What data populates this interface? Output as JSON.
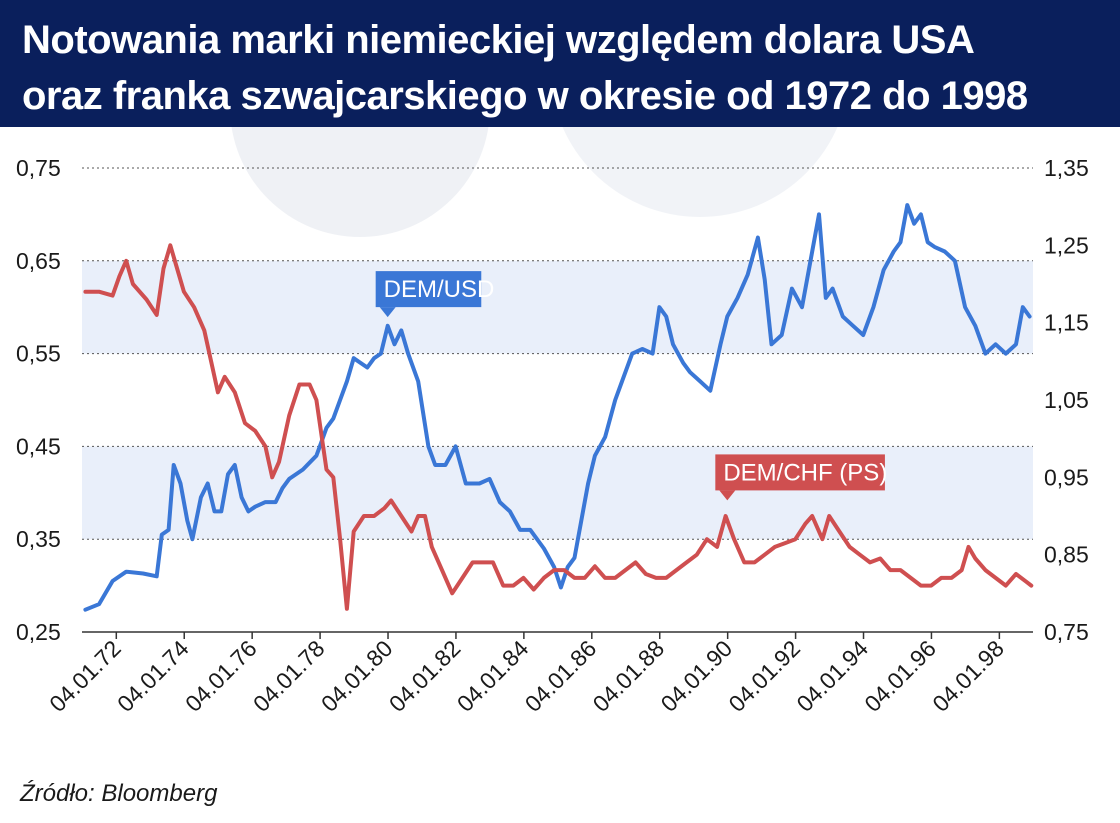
{
  "header": {
    "title_line1": "Notowania marki niemieckiej względem dolara USA",
    "title_line2": "oraz franka szwajcarskiego w okresie od 1972 do 1998"
  },
  "source": "Źródło: Bloomberg",
  "chart_data": {
    "type": "line",
    "title": "Notowania marki niemieckiej względem dolara USA oraz franka szwajcarskiego w okresie od 1972 do 1998",
    "x_ticks": [
      "04.01.72",
      "04.01.74",
      "04.01.76",
      "04.01.78",
      "04.01.80",
      "04.01.82",
      "04.01.84",
      "04.01.86",
      "04.01.88",
      "04.01.90",
      "04.01.92",
      "04.01.94",
      "04.01.96",
      "04.01.98"
    ],
    "x_range": [
      1971.0,
      1999.0
    ],
    "y_left": {
      "range": [
        0.25,
        0.75
      ],
      "ticks": [
        "0,25",
        "0,35",
        "0,45",
        "0,55",
        "0,65",
        "0,75"
      ]
    },
    "y_right": {
      "range": [
        0.75,
        1.35
      ],
      "ticks": [
        "0,75",
        "0,85",
        "0,95",
        "1,05",
        "1,15",
        "1,25",
        "1,35"
      ]
    },
    "grid": true,
    "bands_left": [
      [
        0.35,
        0.45
      ],
      [
        0.55,
        0.65
      ]
    ],
    "colors": {
      "DEM/USD": "#3a77d6",
      "DEM/CHF": "#cf4f50",
      "band": "#e9effa",
      "header": "#0a1f5c"
    },
    "series": [
      {
        "name": "DEM/USD",
        "axis": "left",
        "label": "DEM/USD",
        "label_at": [
          1980.0,
          0.585
        ],
        "points": [
          [
            1971.1,
            0.274
          ],
          [
            1971.5,
            0.28
          ],
          [
            1971.9,
            0.305
          ],
          [
            1972.3,
            0.315
          ],
          [
            1972.8,
            0.313
          ],
          [
            1973.2,
            0.31
          ],
          [
            1973.35,
            0.355
          ],
          [
            1973.55,
            0.36
          ],
          [
            1973.7,
            0.43
          ],
          [
            1973.9,
            0.41
          ],
          [
            1974.1,
            0.37
          ],
          [
            1974.25,
            0.35
          ],
          [
            1974.5,
            0.395
          ],
          [
            1974.7,
            0.41
          ],
          [
            1974.9,
            0.38
          ],
          [
            1975.1,
            0.38
          ],
          [
            1975.3,
            0.42
          ],
          [
            1975.5,
            0.43
          ],
          [
            1975.7,
            0.395
          ],
          [
            1975.9,
            0.38
          ],
          [
            1976.1,
            0.385
          ],
          [
            1976.4,
            0.39
          ],
          [
            1976.7,
            0.39
          ],
          [
            1976.9,
            0.405
          ],
          [
            1977.1,
            0.415
          ],
          [
            1977.5,
            0.425
          ],
          [
            1977.9,
            0.44
          ],
          [
            1978.0,
            0.45
          ],
          [
            1978.2,
            0.47
          ],
          [
            1978.4,
            0.48
          ],
          [
            1978.6,
            0.5
          ],
          [
            1978.8,
            0.52
          ],
          [
            1979.0,
            0.545
          ],
          [
            1979.2,
            0.54
          ],
          [
            1979.4,
            0.535
          ],
          [
            1979.6,
            0.545
          ],
          [
            1979.8,
            0.55
          ],
          [
            1980.0,
            0.58
          ],
          [
            1980.2,
            0.56
          ],
          [
            1980.4,
            0.575
          ],
          [
            1980.6,
            0.55
          ],
          [
            1980.9,
            0.52
          ],
          [
            1981.2,
            0.45
          ],
          [
            1981.4,
            0.43
          ],
          [
            1981.7,
            0.43
          ],
          [
            1982.0,
            0.45
          ],
          [
            1982.3,
            0.41
          ],
          [
            1982.7,
            0.41
          ],
          [
            1983.0,
            0.415
          ],
          [
            1983.3,
            0.39
          ],
          [
            1983.6,
            0.38
          ],
          [
            1983.9,
            0.36
          ],
          [
            1984.2,
            0.36
          ],
          [
            1984.6,
            0.34
          ],
          [
            1984.9,
            0.32
          ],
          [
            1985.1,
            0.298
          ],
          [
            1985.3,
            0.32
          ],
          [
            1985.5,
            0.33
          ],
          [
            1985.7,
            0.37
          ],
          [
            1985.9,
            0.41
          ],
          [
            1986.1,
            0.44
          ],
          [
            1986.4,
            0.46
          ],
          [
            1986.7,
            0.5
          ],
          [
            1986.9,
            0.52
          ],
          [
            1987.2,
            0.55
          ],
          [
            1987.5,
            0.555
          ],
          [
            1987.8,
            0.55
          ],
          [
            1988.0,
            0.6
          ],
          [
            1988.2,
            0.59
          ],
          [
            1988.4,
            0.56
          ],
          [
            1988.7,
            0.54
          ],
          [
            1988.9,
            0.53
          ],
          [
            1989.2,
            0.52
          ],
          [
            1989.5,
            0.51
          ],
          [
            1989.8,
            0.56
          ],
          [
            1990.0,
            0.59
          ],
          [
            1990.3,
            0.61
          ],
          [
            1990.6,
            0.635
          ],
          [
            1990.9,
            0.675
          ],
          [
            1991.1,
            0.63
          ],
          [
            1991.3,
            0.56
          ],
          [
            1991.6,
            0.57
          ],
          [
            1991.9,
            0.62
          ],
          [
            1992.2,
            0.6
          ],
          [
            1992.5,
            0.66
          ],
          [
            1992.7,
            0.7
          ],
          [
            1992.9,
            0.61
          ],
          [
            1993.1,
            0.62
          ],
          [
            1993.4,
            0.59
          ],
          [
            1993.7,
            0.58
          ],
          [
            1994.0,
            0.57
          ],
          [
            1994.3,
            0.6
          ],
          [
            1994.6,
            0.64
          ],
          [
            1994.9,
            0.66
          ],
          [
            1995.1,
            0.67
          ],
          [
            1995.3,
            0.71
          ],
          [
            1995.5,
            0.69
          ],
          [
            1995.7,
            0.7
          ],
          [
            1995.9,
            0.67
          ],
          [
            1996.1,
            0.665
          ],
          [
            1996.4,
            0.66
          ],
          [
            1996.7,
            0.65
          ],
          [
            1997.0,
            0.6
          ],
          [
            1997.3,
            0.58
          ],
          [
            1997.6,
            0.55
          ],
          [
            1997.9,
            0.56
          ],
          [
            1998.2,
            0.55
          ],
          [
            1998.5,
            0.56
          ],
          [
            1998.7,
            0.6
          ],
          [
            1998.9,
            0.59
          ]
        ]
      },
      {
        "name": "DEM/CHF",
        "axis": "right",
        "label": "DEM/CHF (PS)",
        "label_at": [
          1990.0,
          0.915
        ],
        "points": [
          [
            1971.1,
            1.19
          ],
          [
            1971.5,
            1.19
          ],
          [
            1971.9,
            1.185
          ],
          [
            1972.1,
            1.21
          ],
          [
            1972.3,
            1.23
          ],
          [
            1972.5,
            1.2
          ],
          [
            1972.9,
            1.18
          ],
          [
            1973.2,
            1.16
          ],
          [
            1973.4,
            1.22
          ],
          [
            1973.6,
            1.25
          ],
          [
            1973.8,
            1.22
          ],
          [
            1974.0,
            1.19
          ],
          [
            1974.3,
            1.17
          ],
          [
            1974.6,
            1.14
          ],
          [
            1974.8,
            1.1
          ],
          [
            1975.0,
            1.06
          ],
          [
            1975.2,
            1.08
          ],
          [
            1975.5,
            1.06
          ],
          [
            1975.8,
            1.02
          ],
          [
            1976.1,
            1.01
          ],
          [
            1976.4,
            0.99
          ],
          [
            1976.6,
            0.95
          ],
          [
            1976.8,
            0.97
          ],
          [
            1977.1,
            1.03
          ],
          [
            1977.4,
            1.07
          ],
          [
            1977.7,
            1.07
          ],
          [
            1977.9,
            1.05
          ],
          [
            1978.2,
            0.96
          ],
          [
            1978.4,
            0.95
          ],
          [
            1978.6,
            0.87
          ],
          [
            1978.8,
            0.78
          ],
          [
            1979.0,
            0.88
          ],
          [
            1979.3,
            0.9
          ],
          [
            1979.6,
            0.9
          ],
          [
            1979.9,
            0.91
          ],
          [
            1980.1,
            0.92
          ],
          [
            1980.4,
            0.9
          ],
          [
            1980.7,
            0.88
          ],
          [
            1980.9,
            0.9
          ],
          [
            1981.1,
            0.9
          ],
          [
            1981.3,
            0.86
          ],
          [
            1981.6,
            0.83
          ],
          [
            1981.9,
            0.8
          ],
          [
            1982.2,
            0.82
          ],
          [
            1982.5,
            0.84
          ],
          [
            1982.8,
            0.84
          ],
          [
            1983.1,
            0.84
          ],
          [
            1983.4,
            0.81
          ],
          [
            1983.7,
            0.81
          ],
          [
            1984.0,
            0.82
          ],
          [
            1984.3,
            0.805
          ],
          [
            1984.6,
            0.82
          ],
          [
            1984.9,
            0.83
          ],
          [
            1985.2,
            0.83
          ],
          [
            1985.5,
            0.82
          ],
          [
            1985.8,
            0.82
          ],
          [
            1986.1,
            0.835
          ],
          [
            1986.4,
            0.82
          ],
          [
            1986.7,
            0.82
          ],
          [
            1987.0,
            0.83
          ],
          [
            1987.3,
            0.84
          ],
          [
            1987.6,
            0.825
          ],
          [
            1987.9,
            0.82
          ],
          [
            1988.2,
            0.82
          ],
          [
            1988.5,
            0.83
          ],
          [
            1988.8,
            0.84
          ],
          [
            1989.1,
            0.85
          ],
          [
            1989.4,
            0.87
          ],
          [
            1989.7,
            0.86
          ],
          [
            1989.95,
            0.9
          ],
          [
            1990.2,
            0.87
          ],
          [
            1990.5,
            0.84
          ],
          [
            1990.8,
            0.84
          ],
          [
            1991.1,
            0.85
          ],
          [
            1991.4,
            0.86
          ],
          [
            1991.7,
            0.865
          ],
          [
            1992.0,
            0.87
          ],
          [
            1992.3,
            0.89
          ],
          [
            1992.5,
            0.9
          ],
          [
            1992.8,
            0.87
          ],
          [
            1993.0,
            0.9
          ],
          [
            1993.3,
            0.88
          ],
          [
            1993.6,
            0.86
          ],
          [
            1993.9,
            0.85
          ],
          [
            1994.2,
            0.84
          ],
          [
            1994.5,
            0.845
          ],
          [
            1994.8,
            0.83
          ],
          [
            1995.1,
            0.83
          ],
          [
            1995.4,
            0.82
          ],
          [
            1995.7,
            0.81
          ],
          [
            1996.0,
            0.81
          ],
          [
            1996.3,
            0.82
          ],
          [
            1996.6,
            0.82
          ],
          [
            1996.9,
            0.83
          ],
          [
            1997.1,
            0.86
          ],
          [
            1997.3,
            0.845
          ],
          [
            1997.6,
            0.83
          ],
          [
            1997.9,
            0.82
          ],
          [
            1998.2,
            0.81
          ],
          [
            1998.5,
            0.825
          ],
          [
            1998.8,
            0.815
          ],
          [
            1998.95,
            0.81
          ]
        ]
      }
    ]
  }
}
